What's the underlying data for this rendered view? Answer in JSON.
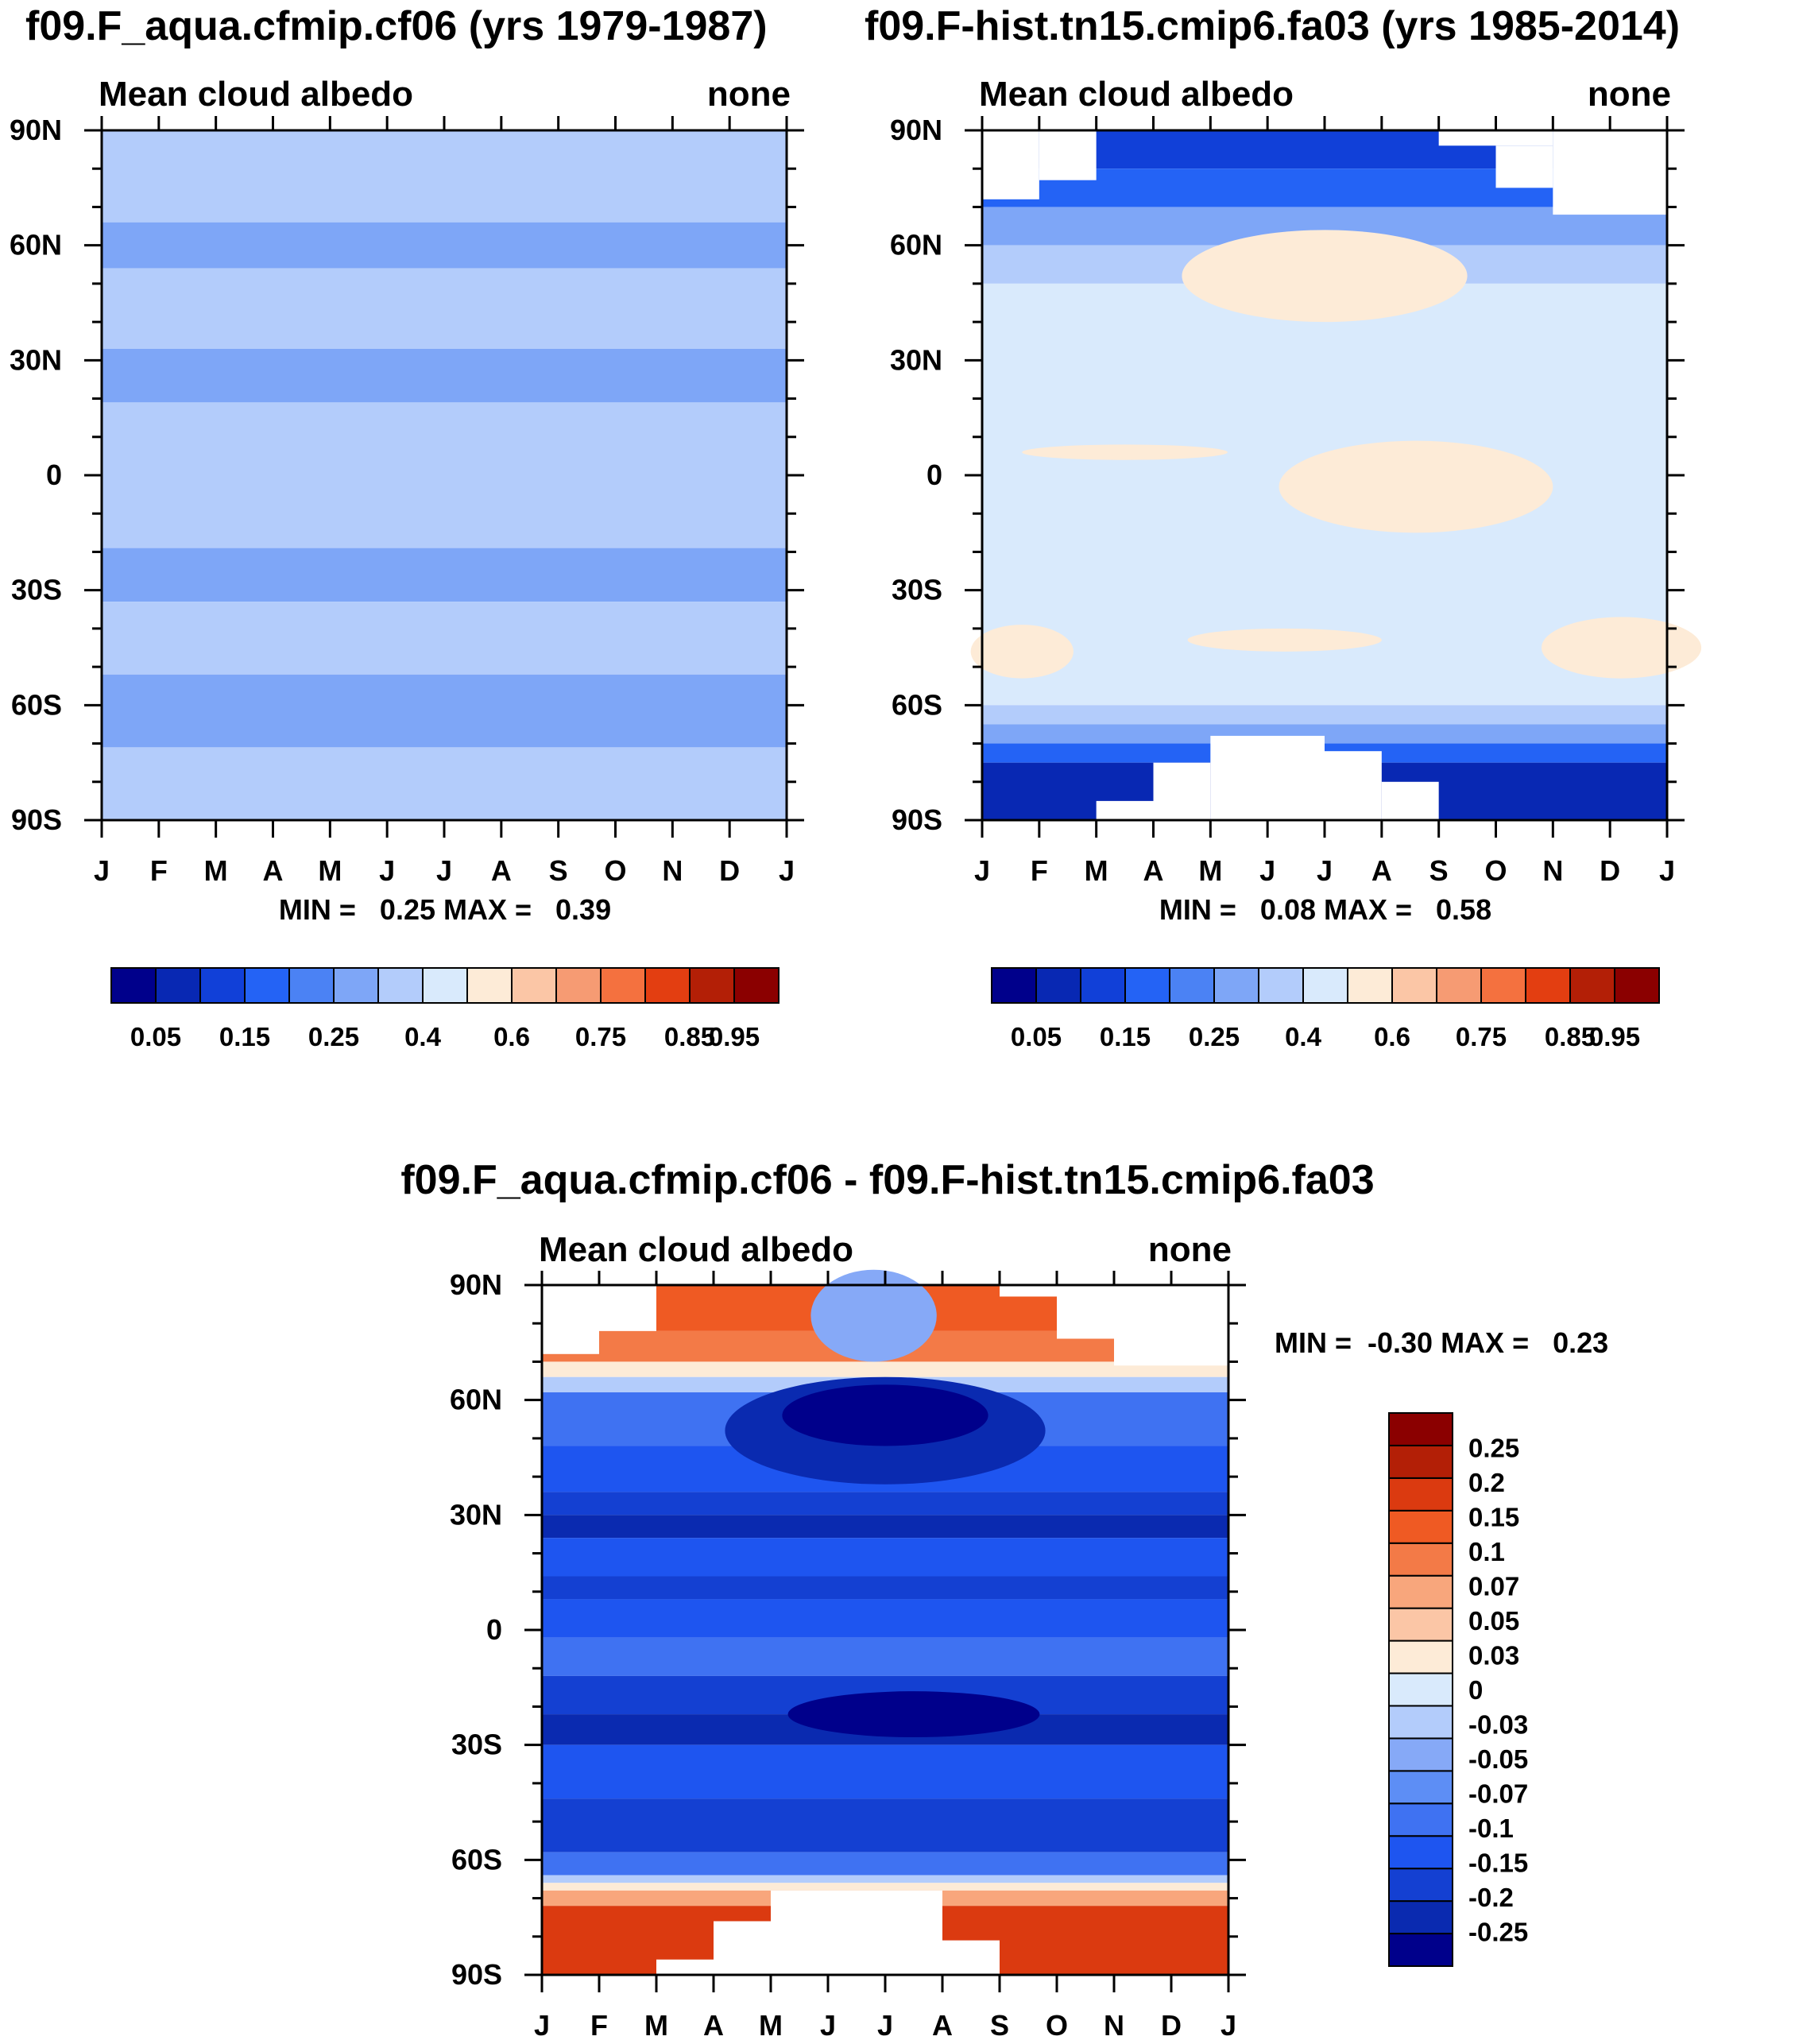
{
  "figure": {
    "top_left_title": "f09.F_aqua.cfmip.cf06 (yrs 1979-1987)",
    "top_right_title": "f09.F-hist.tn15.cmip6.fa03 (yrs 1985-2014)",
    "bottom_title": "f09.F_aqua.cfmip.cf06 - f09.F-hist.tn15.cmip6.fa03"
  },
  "colors": {
    "seq14": [
      "#00008b",
      "#0828b3",
      "#1140d8",
      "#2463f5",
      "#4b82f4",
      "#7ea6f7",
      "#b3ccfb",
      "#d9eafc",
      "#fdebd7",
      "#fbc6a6",
      "#f69b73",
      "#f4713f",
      "#e33e11",
      "#b31f06",
      "#8b0000"
    ],
    "diff16": [
      "#00008b",
      "#0a2ab0",
      "#1440d2",
      "#1e55f0",
      "#3f72f2",
      "#5d8ef5",
      "#86a9f7",
      "#b3ccfb",
      "#d9eafc",
      "#fdebd7",
      "#fbc6a6",
      "#f8a67c",
      "#f37a47",
      "#ef5a23",
      "#db3a10",
      "#b31f06",
      "#8b0000"
    ]
  },
  "chart_data": [
    {
      "type": "heatmap",
      "title": "f09.F_aqua.cfmip.cf06 (yrs 1979-1987)",
      "left_label": "Mean cloud albedo",
      "right_label": "none",
      "x_ticks": [
        "J",
        "F",
        "M",
        "A",
        "M",
        "J",
        "J",
        "A",
        "S",
        "O",
        "N",
        "D",
        "J"
      ],
      "y_ticks": [
        "90N",
        "60N",
        "30N",
        "0",
        "30S",
        "60S",
        "90S"
      ],
      "stats_text": "MIN =   0.25 MAX =   0.39",
      "min": 0.25,
      "max": 0.39,
      "colorbar_levels": [
        "0.05",
        "0.15",
        "0.25",
        "0.4",
        "0.6",
        "0.75",
        "0.85",
        "0.95"
      ],
      "bands": [
        {
          "lat_top": 90,
          "lat_bottom": 66,
          "level": 6
        },
        {
          "lat_top": 66,
          "lat_bottom": 54,
          "level": 5
        },
        {
          "lat_top": 54,
          "lat_bottom": 33,
          "level": 6
        },
        {
          "lat_top": 33,
          "lat_bottom": 19,
          "level": 5
        },
        {
          "lat_top": 19,
          "lat_bottom": -19,
          "level": 6
        },
        {
          "lat_top": -19,
          "lat_bottom": -33,
          "level": 5
        },
        {
          "lat_top": -33,
          "lat_bottom": -52,
          "level": 6
        },
        {
          "lat_top": -52,
          "lat_bottom": -71,
          "level": 5
        },
        {
          "lat_top": -71,
          "lat_bottom": -90,
          "level": 6
        }
      ]
    },
    {
      "type": "heatmap",
      "title": "f09.F-hist.tn15.cmip6.fa03 (yrs 1985-2014)",
      "left_label": "Mean cloud albedo",
      "right_label": "none",
      "x_ticks": [
        "J",
        "F",
        "M",
        "A",
        "M",
        "J",
        "J",
        "A",
        "S",
        "O",
        "N",
        "D",
        "J"
      ],
      "y_ticks": [
        "90N",
        "60N",
        "30N",
        "0",
        "30S",
        "60S",
        "90S"
      ],
      "stats_text": "MIN =   0.08 MAX =   0.58",
      "min": 0.08,
      "max": 0.58,
      "colorbar_levels": [
        "0.05",
        "0.15",
        "0.25",
        "0.4",
        "0.6",
        "0.75",
        "0.85",
        "0.95"
      ],
      "bands": [
        {
          "lat_top": 90,
          "lat_bottom": 80,
          "level": 2
        },
        {
          "lat_top": 80,
          "lat_bottom": 70,
          "level": 3
        },
        {
          "lat_top": 70,
          "lat_bottom": 60,
          "level": 5
        },
        {
          "lat_top": 60,
          "lat_bottom": 50,
          "level": 6
        },
        {
          "lat_top": 50,
          "lat_bottom": -60,
          "level": 7
        },
        {
          "lat_top": -60,
          "lat_bottom": -65,
          "level": 6
        },
        {
          "lat_top": -65,
          "lat_bottom": -70,
          "level": 5
        },
        {
          "lat_top": -70,
          "lat_bottom": -75,
          "level": 3
        },
        {
          "lat_top": -75,
          "lat_bottom": -90,
          "level": 1
        }
      ],
      "blobs": [
        {
          "month_center": 6.0,
          "lat_center": 52,
          "month_half": 2.5,
          "lat_half": 12,
          "level": 8
        },
        {
          "month_center": 7.6,
          "lat_center": -3,
          "month_half": 2.4,
          "lat_half": 12,
          "level": 8
        },
        {
          "month_center": 2.5,
          "lat_center": 6,
          "month_half": 1.8,
          "lat_half": 2,
          "level": 8
        },
        {
          "month_center": 0.7,
          "lat_center": -46,
          "month_half": 0.9,
          "lat_half": 7,
          "level": 8
        },
        {
          "month_center": 5.3,
          "lat_center": -43,
          "month_half": 1.7,
          "lat_half": 3,
          "level": 8
        },
        {
          "month_center": 11.2,
          "lat_center": -45,
          "month_half": 1.4,
          "lat_half": 8,
          "level": 8
        }
      ],
      "missing": [
        {
          "month_start": 0,
          "month_end": 1,
          "lat_top": 90,
          "lat_bottom": 72
        },
        {
          "month_start": 1,
          "month_end": 2,
          "lat_top": 90,
          "lat_bottom": 77
        },
        {
          "month_start": 8,
          "month_end": 10,
          "lat_top": 90,
          "lat_bottom": 86
        },
        {
          "month_start": 9,
          "month_end": 10,
          "lat_top": 86,
          "lat_bottom": 75
        },
        {
          "month_start": 10,
          "month_end": 12,
          "lat_top": 90,
          "lat_bottom": 68
        },
        {
          "month_start": 2,
          "month_end": 3,
          "lat_top": -85,
          "lat_bottom": -90
        },
        {
          "month_start": 3,
          "month_end": 4,
          "lat_top": -75,
          "lat_bottom": -90
        },
        {
          "month_start": 4,
          "month_end": 6,
          "lat_top": -68,
          "lat_bottom": -90
        },
        {
          "month_start": 6,
          "month_end": 7,
          "lat_top": -72,
          "lat_bottom": -90
        },
        {
          "month_start": 7,
          "month_end": 8,
          "lat_top": -80,
          "lat_bottom": -90
        }
      ]
    },
    {
      "type": "heatmap",
      "title": "f09.F_aqua.cfmip.cf06 - f09.F-hist.tn15.cmip6.fa03",
      "left_label": "Mean cloud albedo",
      "right_label": "none",
      "x_ticks": [
        "J",
        "F",
        "M",
        "A",
        "M",
        "J",
        "J",
        "A",
        "S",
        "O",
        "N",
        "D",
        "J"
      ],
      "y_ticks": [
        "90N",
        "60N",
        "30N",
        "0",
        "30S",
        "60S",
        "90S"
      ],
      "stats_text": "MIN =  -0.30 MAX =   0.23",
      "min": -0.3,
      "max": 0.23,
      "colorbar_levels": [
        "0.25",
        "0.2",
        "0.15",
        "0.1",
        "0.07",
        "0.05",
        "0.03",
        "0",
        "-0.03",
        "-0.05",
        "-0.07",
        "-0.1",
        "-0.15",
        "-0.2",
        "-0.25"
      ],
      "bands": [
        {
          "lat_top": 90,
          "lat_bottom": 78,
          "level": 13
        },
        {
          "lat_top": 78,
          "lat_bottom": 70,
          "level": 12
        },
        {
          "lat_top": 70,
          "lat_bottom": 66,
          "level": 9
        },
        {
          "lat_top": 66,
          "lat_bottom": 62,
          "level": 7
        },
        {
          "lat_top": 62,
          "lat_bottom": 48,
          "level": 4
        },
        {
          "lat_top": 48,
          "lat_bottom": 36,
          "level": 3
        },
        {
          "lat_top": 36,
          "lat_bottom": 30,
          "level": 2
        },
        {
          "lat_top": 30,
          "lat_bottom": 24,
          "level": 1
        },
        {
          "lat_top": 24,
          "lat_bottom": 14,
          "level": 3
        },
        {
          "lat_top": 14,
          "lat_bottom": 8,
          "level": 2
        },
        {
          "lat_top": 8,
          "lat_bottom": -2,
          "level": 3
        },
        {
          "lat_top": -2,
          "lat_bottom": -12,
          "level": 4
        },
        {
          "lat_top": -12,
          "lat_bottom": -22,
          "level": 2
        },
        {
          "lat_top": -22,
          "lat_bottom": -30,
          "level": 1
        },
        {
          "lat_top": -30,
          "lat_bottom": -44,
          "level": 3
        },
        {
          "lat_top": -44,
          "lat_bottom": -58,
          "level": 2
        },
        {
          "lat_top": -58,
          "lat_bottom": -64,
          "level": 4
        },
        {
          "lat_top": -64,
          "lat_bottom": -66,
          "level": 7
        },
        {
          "lat_top": -66,
          "lat_bottom": -68,
          "level": 9
        },
        {
          "lat_top": -68,
          "lat_bottom": -72,
          "level": 11
        },
        {
          "lat_top": -72,
          "lat_bottom": -90,
          "level": 14
        }
      ],
      "blobs": [
        {
          "month_center": 5.8,
          "lat_center": 82,
          "month_half": 1.1,
          "lat_half": 12,
          "level": 6
        },
        {
          "month_center": 6.0,
          "lat_center": 52,
          "month_half": 2.8,
          "lat_half": 14,
          "level": 1
        },
        {
          "month_center": 6.0,
          "lat_center": 56,
          "month_half": 1.8,
          "lat_half": 8,
          "level": 0
        },
        {
          "month_center": 6.5,
          "lat_center": -22,
          "month_half": 2.2,
          "lat_half": 6,
          "level": 0
        }
      ],
      "missing": [
        {
          "month_start": 0,
          "month_end": 1,
          "lat_top": 90,
          "lat_bottom": 72
        },
        {
          "month_start": 1,
          "month_end": 2,
          "lat_top": 90,
          "lat_bottom": 78
        },
        {
          "month_start": 8,
          "month_end": 9,
          "lat_top": 90,
          "lat_bottom": 87
        },
        {
          "month_start": 9,
          "month_end": 10,
          "lat_top": 90,
          "lat_bottom": 76
        },
        {
          "month_start": 10,
          "month_end": 12,
          "lat_top": 90,
          "lat_bottom": 69
        },
        {
          "month_start": 2,
          "month_end": 3,
          "lat_top": -86,
          "lat_bottom": -90
        },
        {
          "month_start": 3,
          "month_end": 4,
          "lat_top": -76,
          "lat_bottom": -90
        },
        {
          "month_start": 4,
          "month_end": 7,
          "lat_top": -68,
          "lat_bottom": -90
        },
        {
          "month_start": 7,
          "month_end": 8,
          "lat_top": -81,
          "lat_bottom": -90
        }
      ]
    }
  ]
}
